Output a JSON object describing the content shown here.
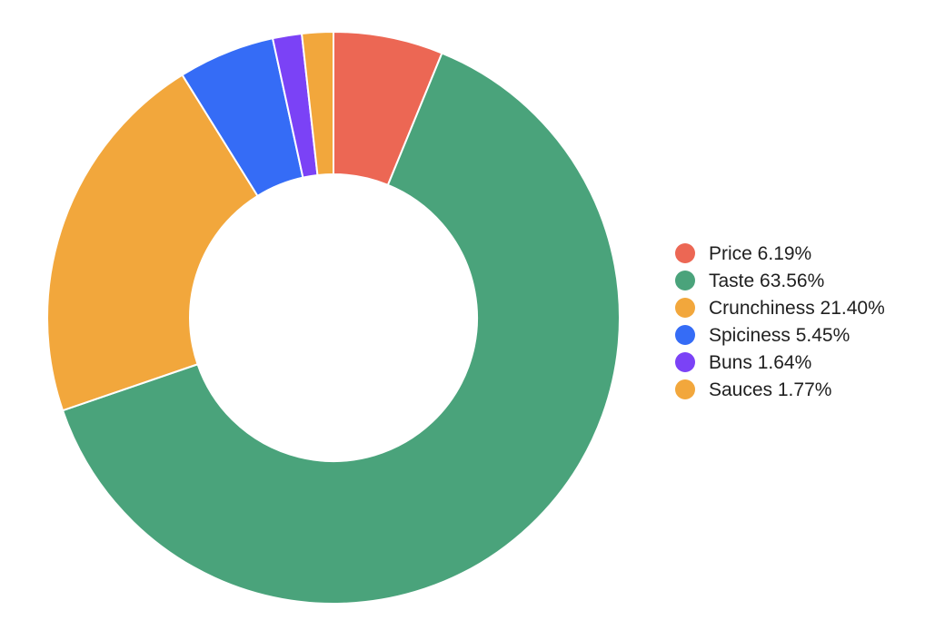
{
  "chart_data": {
    "type": "pie",
    "variant": "donut",
    "legend_position": "right",
    "categories": [
      "Price",
      "Taste",
      "Crunchiness",
      "Spiciness",
      "Buns",
      "Sauces"
    ],
    "values": [
      6.19,
      63.56,
      21.4,
      5.45,
      1.64,
      1.77
    ],
    "value_labels": [
      "6.19%",
      "63.56%",
      "21.40%",
      "5.45%",
      "1.64%",
      "1.77%"
    ],
    "colors": [
      "#ec6754",
      "#4aa37b",
      "#f2a73c",
      "#356cf6",
      "#7b42f6",
      "#f2a73c"
    ]
  }
}
